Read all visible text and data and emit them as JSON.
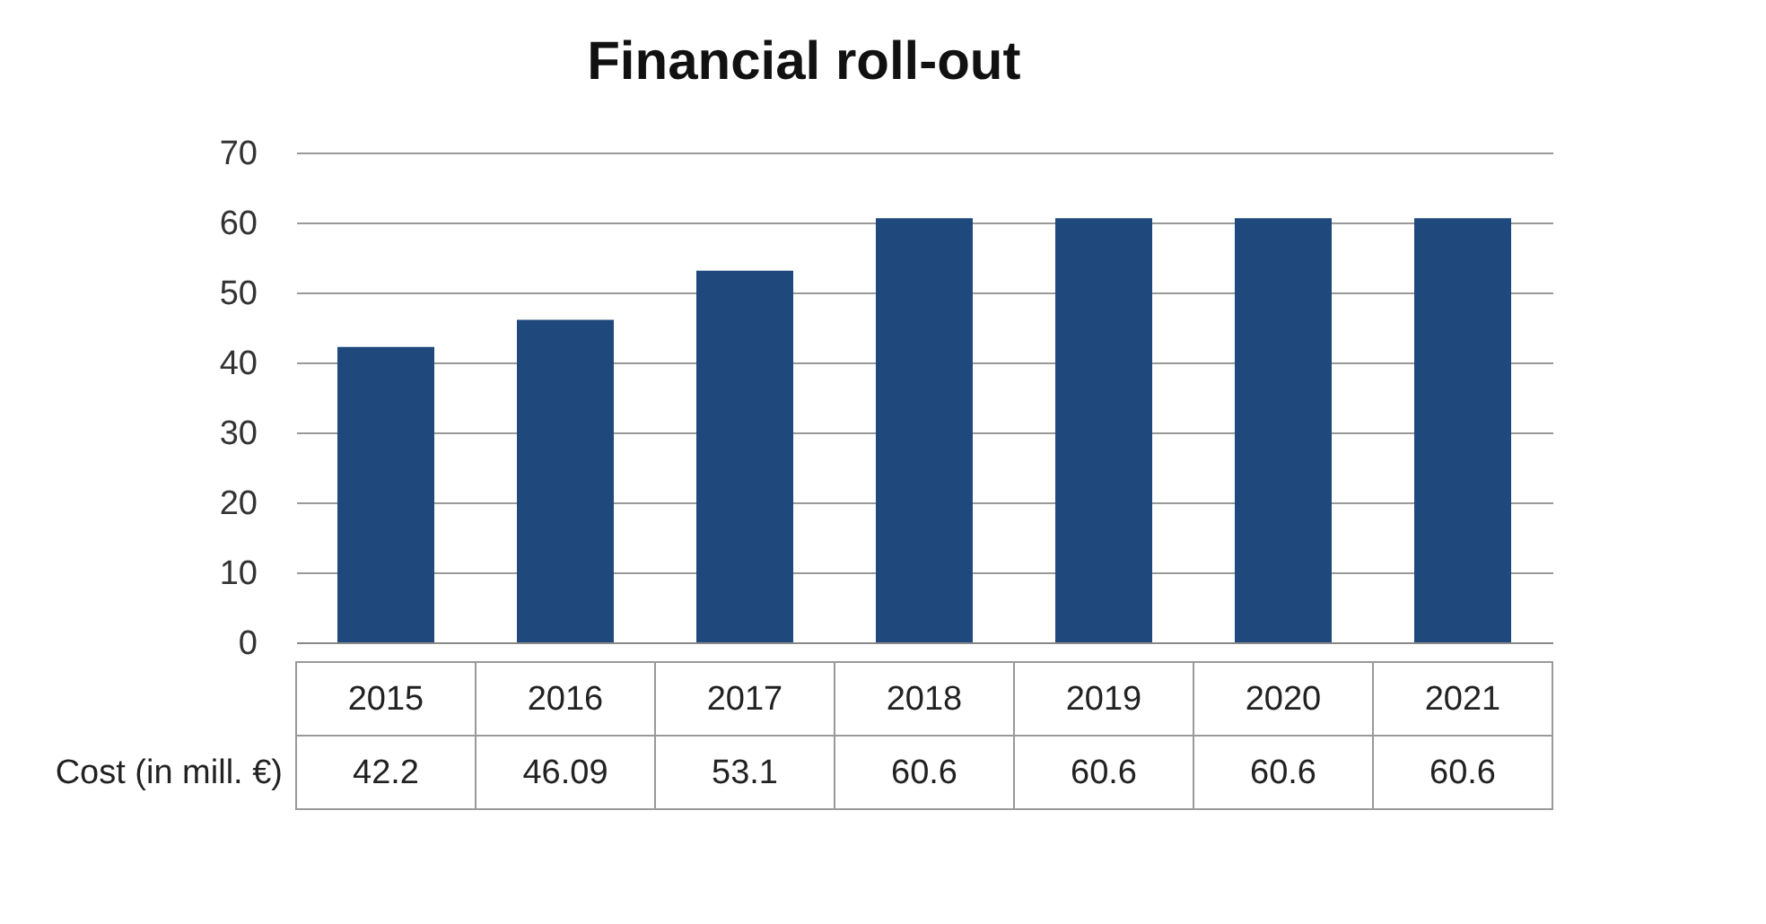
{
  "chart_data": {
    "type": "bar",
    "title": "Financial roll-out",
    "categories": [
      "2015",
      "2016",
      "2017",
      "2018",
      "2019",
      "2020",
      "2021"
    ],
    "series": [
      {
        "name": "Cost (in mill. €)",
        "color": "#1f497d",
        "values": [
          42.2,
          46.09,
          53.1,
          60.6,
          60.6,
          60.6,
          60.6
        ]
      }
    ],
    "ylim": [
      0,
      70
    ],
    "yticks": [
      0,
      10,
      20,
      30,
      40,
      50,
      60,
      70
    ],
    "grid": "y",
    "data_labels": true
  }
}
